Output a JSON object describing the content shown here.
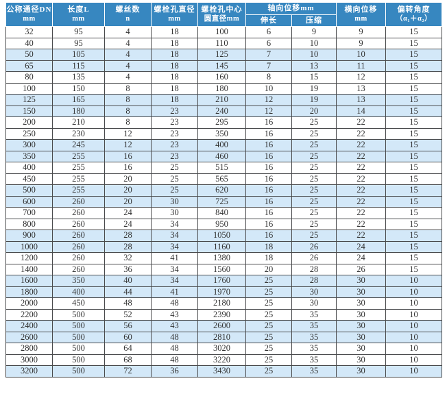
{
  "colors": {
    "header_bg": "#3787c0",
    "header_text": "#ffffff",
    "stripe_row_bg": "#d3e8f8",
    "plain_row_bg": "#ffffff",
    "grid_border": "#494a4c",
    "cell_text": "#333333"
  },
  "table": {
    "headers": {
      "dn": {
        "line1": "公称通径DN",
        "line2": "mm"
      },
      "length": {
        "line1": "长度L",
        "line2": "mm"
      },
      "screws": {
        "line1": "螺丝数",
        "line2": "n"
      },
      "bolt_hole_dia": {
        "line1": "螺栓孔直径",
        "line2": "mm"
      },
      "bolt_circle_dia": {
        "line1": "螺栓孔中心",
        "line2": "圆直径mm"
      },
      "axial": {
        "group": "轴向位移mm",
        "sub_extend": "伸长",
        "sub_compress": "压缩"
      },
      "lateral": {
        "line1": "横向位移",
        "line2": "mm"
      },
      "deflection": {
        "line1": "偏转角度",
        "line2": "（α₁＋α₂）"
      }
    },
    "rows": [
      [
        32,
        95,
        4,
        18,
        100,
        6,
        9,
        9,
        15
      ],
      [
        40,
        95,
        4,
        18,
        110,
        6,
        10,
        9,
        15
      ],
      [
        50,
        105,
        4,
        18,
        125,
        7,
        10,
        10,
        15
      ],
      [
        65,
        115,
        4,
        18,
        145,
        7,
        13,
        11,
        15
      ],
      [
        80,
        135,
        4,
        18,
        160,
        8,
        15,
        12,
        15
      ],
      [
        100,
        150,
        8,
        18,
        180,
        10,
        19,
        13,
        15
      ],
      [
        125,
        165,
        8,
        18,
        210,
        12,
        19,
        13,
        15
      ],
      [
        150,
        180,
        8,
        23,
        240,
        12,
        20,
        14,
        15
      ],
      [
        200,
        210,
        8,
        23,
        295,
        16,
        25,
        22,
        15
      ],
      [
        250,
        230,
        12,
        23,
        350,
        16,
        25,
        22,
        15
      ],
      [
        300,
        245,
        12,
        23,
        400,
        16,
        25,
        22,
        15
      ],
      [
        350,
        255,
        16,
        23,
        460,
        16,
        25,
        22,
        15
      ],
      [
        400,
        255,
        16,
        25,
        515,
        16,
        25,
        22,
        15
      ],
      [
        450,
        255,
        20,
        25,
        565,
        16,
        25,
        22,
        15
      ],
      [
        500,
        255,
        20,
        25,
        620,
        16,
        25,
        22,
        15
      ],
      [
        600,
        260,
        20,
        30,
        725,
        16,
        25,
        22,
        15
      ],
      [
        700,
        260,
        24,
        30,
        840,
        16,
        25,
        22,
        15
      ],
      [
        800,
        260,
        24,
        34,
        950,
        16,
        25,
        22,
        15
      ],
      [
        900,
        260,
        28,
        34,
        1050,
        16,
        25,
        22,
        15
      ],
      [
        1000,
        260,
        28,
        34,
        1160,
        18,
        26,
        24,
        15
      ],
      [
        1200,
        260,
        32,
        41,
        1380,
        18,
        26,
        24,
        15
      ],
      [
        1400,
        260,
        36,
        34,
        1560,
        20,
        28,
        26,
        15
      ],
      [
        1600,
        350,
        40,
        34,
        1760,
        25,
        28,
        30,
        10
      ],
      [
        1800,
        400,
        44,
        41,
        1970,
        25,
        30,
        30,
        10
      ],
      [
        2000,
        450,
        48,
        48,
        2180,
        25,
        30,
        30,
        10
      ],
      [
        2200,
        500,
        52,
        43,
        2390,
        25,
        35,
        30,
        10
      ],
      [
        2400,
        500,
        56,
        43,
        2600,
        25,
        35,
        30,
        10
      ],
      [
        2600,
        500,
        60,
        48,
        2810,
        25,
        35,
        30,
        10
      ],
      [
        2800,
        500,
        64,
        48,
        3020,
        25,
        35,
        30,
        10
      ],
      [
        3000,
        500,
        68,
        48,
        3220,
        25,
        35,
        30,
        10
      ],
      [
        3200,
        500,
        72,
        36,
        3430,
        25,
        35,
        30,
        10
      ]
    ]
  }
}
